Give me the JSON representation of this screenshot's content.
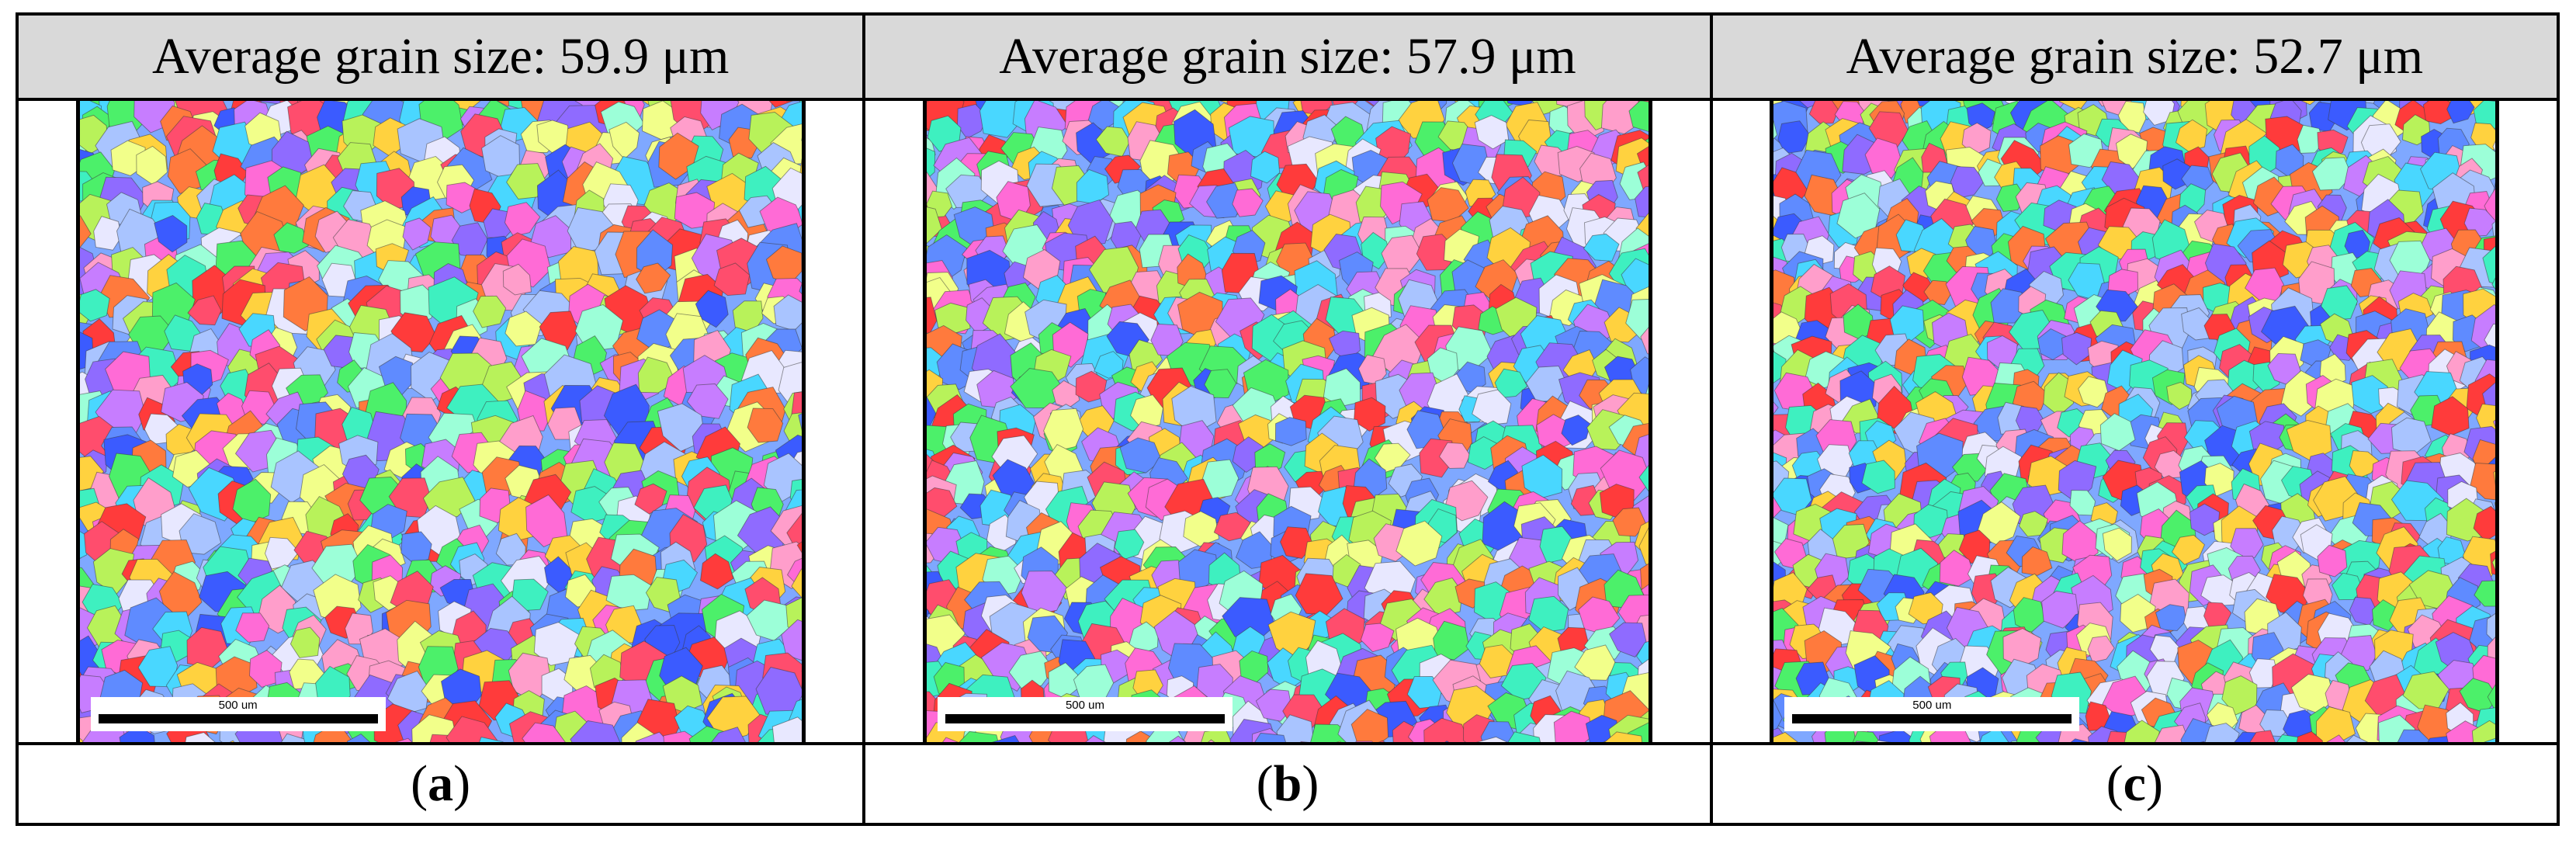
{
  "panels": [
    {
      "header": "Average grain size: 59.9 μm",
      "caption_open": "(",
      "caption_letter": "a",
      "caption_close": ")",
      "scale_label": "500 um",
      "seed": 17
    },
    {
      "header": "Average grain size: 57.9 μm",
      "caption_open": "(",
      "caption_letter": "b",
      "caption_close": ")",
      "scale_label": "500 um",
      "seed": 53
    },
    {
      "header": "Average grain size: 52.7 μm",
      "caption_open": "(",
      "caption_letter": "c",
      "caption_close": ")",
      "scale_label": "500 um",
      "seed": 91
    }
  ],
  "palette": [
    "#ff4d6d",
    "#ff7a3d",
    "#ffd23f",
    "#b8f25a",
    "#4cf06a",
    "#3ef0c0",
    "#49d7ff",
    "#5f8bff",
    "#8f6bff",
    "#c77dff",
    "#ff6bd6",
    "#ff9ecb",
    "#a9c4ff",
    "#9cffd8",
    "#f2ff8a",
    "#ff3b3b",
    "#3b5bff",
    "#e8e8ff"
  ]
}
